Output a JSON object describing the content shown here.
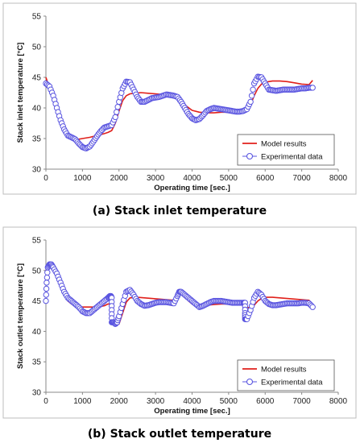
{
  "chart_data": [
    {
      "type": "line",
      "caption": "(a) Stack inlet temperature",
      "xlabel": "Operating time [sec.]",
      "ylabel": "Stack inlet temperature [°C]",
      "xlim": [
        0,
        8000
      ],
      "ylim": [
        30,
        55
      ],
      "xticks": [
        0,
        1000,
        2000,
        3000,
        4000,
        5000,
        6000,
        7000,
        8000
      ],
      "yticks": [
        30,
        35,
        40,
        45,
        50,
        55
      ],
      "grid": false,
      "legend": "bottom-right",
      "series": [
        {
          "name": "Model results",
          "style": "line",
          "color": "#e0201b",
          "x": [
            0,
            100,
            200,
            300,
            400,
            500,
            600,
            700,
            800,
            900,
            1000,
            1200,
            1400,
            1600,
            1700,
            1800,
            1900,
            2000,
            2100,
            2200,
            2300,
            2400,
            2600,
            2800,
            3000,
            3200,
            3400,
            3600,
            3800,
            4000,
            4200,
            4400,
            4600,
            4800,
            5000,
            5200,
            5400,
            5600,
            5700,
            5800,
            5900,
            6000,
            6200,
            6400,
            6600,
            6800,
            7000,
            7200,
            7300
          ],
          "y": [
            45.0,
            43.2,
            41.5,
            39.5,
            37.8,
            36.5,
            35.6,
            35.1,
            34.9,
            34.9,
            35.0,
            35.2,
            35.5,
            35.8,
            36.0,
            36.3,
            37.5,
            39.5,
            41.2,
            42.0,
            42.3,
            42.4,
            42.5,
            42.4,
            42.3,
            42.2,
            42.0,
            41.5,
            40.5,
            39.6,
            39.3,
            39.2,
            39.2,
            39.3,
            39.3,
            39.4,
            39.5,
            40.5,
            42.0,
            43.2,
            43.9,
            44.2,
            44.4,
            44.4,
            44.3,
            44.1,
            43.9,
            43.8,
            44.5
          ]
        },
        {
          "name": "Experimental data",
          "style": "markers",
          "color": "#5a55e0",
          "x": [
            0,
            100,
            200,
            300,
            400,
            500,
            600,
            700,
            800,
            900,
            1000,
            1100,
            1200,
            1300,
            1400,
            1500,
            1600,
            1700,
            1800,
            1900,
            2000,
            2100,
            2200,
            2300,
            2400,
            2500,
            2600,
            2700,
            2800,
            2900,
            3000,
            3100,
            3200,
            3300,
            3400,
            3500,
            3600,
            3700,
            3800,
            3900,
            4000,
            4100,
            4200,
            4300,
            4400,
            4500,
            4600,
            4700,
            4800,
            4900,
            5000,
            5100,
            5200,
            5300,
            5400,
            5500,
            5600,
            5700,
            5800,
            5900,
            6000,
            6100,
            6200,
            6300,
            6400,
            6500,
            6600,
            6700,
            6800,
            6900,
            7000,
            7100,
            7200,
            7300
          ],
          "y": [
            44.0,
            43.5,
            42.0,
            40.0,
            38.0,
            36.5,
            35.5,
            35.2,
            34.9,
            34.2,
            33.6,
            33.4,
            33.7,
            34.5,
            35.4,
            36.2,
            36.8,
            37.0,
            37.2,
            38.5,
            41.0,
            43.2,
            44.3,
            44.2,
            43.0,
            41.8,
            41.0,
            41.0,
            41.3,
            41.6,
            41.7,
            41.8,
            42.0,
            42.2,
            42.1,
            42.0,
            41.8,
            41.0,
            40.0,
            39.0,
            38.3,
            38.0,
            38.2,
            38.8,
            39.5,
            39.8,
            40.0,
            39.9,
            39.8,
            39.7,
            39.6,
            39.5,
            39.4,
            39.4,
            39.5,
            39.8,
            41.0,
            44.0,
            45.1,
            45.0,
            44.0,
            43.0,
            42.9,
            42.8,
            42.9,
            43.0,
            43.0,
            43.0,
            43.0,
            43.1,
            43.2,
            43.2,
            43.3,
            43.3
          ]
        }
      ]
    },
    {
      "type": "line",
      "caption": "(b) Stack outlet temperature",
      "xlabel": "Operating time [sec.]",
      "ylabel": "Stack outlet temperature [°C]",
      "xlim": [
        0,
        8000
      ],
      "ylim": [
        30,
        55
      ],
      "xticks": [
        0,
        1000,
        2000,
        3000,
        4000,
        5000,
        6000,
        7000,
        8000
      ],
      "yticks": [
        30,
        35,
        40,
        45,
        50,
        55
      ],
      "grid": false,
      "legend": "bottom-right",
      "series": [
        {
          "name": "Model results",
          "style": "line",
          "color": "#e0201b",
          "x": [
            0,
            100,
            200,
            300,
            400,
            500,
            600,
            700,
            800,
            900,
            1000,
            1200,
            1400,
            1600,
            1700,
            1800,
            1850,
            1900,
            2000,
            2100,
            2200,
            2300,
            2500,
            2700,
            2900,
            3100,
            3300,
            3500,
            3600,
            3700,
            3800,
            3900,
            4000,
            4200,
            4400,
            4600,
            4800,
            5000,
            5200,
            5400,
            5500,
            5600,
            5700,
            5800,
            5900,
            6000,
            6200,
            6400,
            6600,
            6800,
            7000,
            7200,
            7300
          ],
          "y": [
            50.0,
            50.6,
            50.2,
            49.0,
            47.5,
            46.0,
            45.0,
            44.5,
            44.2,
            44.1,
            44.0,
            44.0,
            44.0,
            44.2,
            44.5,
            44.5,
            42.0,
            41.0,
            41.2,
            43.0,
            44.8,
            45.5,
            45.6,
            45.5,
            45.4,
            45.3,
            45.2,
            45.1,
            45.8,
            46.2,
            45.8,
            45.0,
            44.5,
            44.3,
            44.3,
            44.4,
            44.5,
            44.5,
            44.5,
            44.5,
            44.0,
            43.8,
            44.3,
            45.0,
            45.4,
            45.6,
            45.6,
            45.5,
            45.4,
            45.3,
            45.2,
            45.1,
            44.0
          ]
        },
        {
          "name": "Experimental data",
          "style": "markers",
          "color": "#5a55e0",
          "x": [
            0,
            20,
            50,
            100,
            150,
            200,
            300,
            400,
            500,
            600,
            700,
            800,
            900,
            1000,
            1100,
            1200,
            1300,
            1400,
            1500,
            1600,
            1700,
            1750,
            1780,
            1800,
            1800,
            1800,
            1850,
            1900,
            1950,
            2000,
            2100,
            2200,
            2300,
            2400,
            2500,
            2600,
            2700,
            2800,
            2900,
            3000,
            3100,
            3200,
            3300,
            3400,
            3500,
            3600,
            3650,
            3700,
            3800,
            3900,
            4000,
            4100,
            4200,
            4300,
            4400,
            4500,
            4600,
            4700,
            4800,
            4900,
            5000,
            5100,
            5200,
            5300,
            5400,
            5450,
            5450,
            5450,
            5500,
            5600,
            5700,
            5800,
            5900,
            6000,
            6100,
            6200,
            6300,
            6400,
            6500,
            6600,
            6700,
            6800,
            6900,
            7000,
            7100,
            7200,
            7300
          ],
          "y": [
            45.0,
            48.0,
            50.5,
            51.0,
            51.0,
            50.5,
            49.5,
            48.0,
            46.5,
            45.5,
            45.0,
            44.5,
            44.0,
            43.3,
            43.0,
            43.0,
            43.5,
            44.0,
            44.5,
            45.0,
            45.5,
            45.8,
            45.8,
            45.5,
            43.5,
            41.5,
            41.5,
            41.2,
            41.5,
            42.5,
            44.5,
            46.5,
            46.8,
            46.0,
            45.0,
            44.5,
            44.2,
            44.3,
            44.5,
            44.7,
            44.8,
            44.8,
            44.8,
            44.7,
            44.6,
            45.8,
            46.5,
            46.5,
            46.0,
            45.5,
            45.0,
            44.5,
            44.0,
            44.2,
            44.5,
            44.8,
            45.0,
            45.0,
            45.0,
            44.9,
            44.8,
            44.7,
            44.7,
            44.7,
            44.7,
            44.7,
            43.0,
            42.0,
            42.0,
            43.5,
            45.5,
            46.5,
            46.0,
            45.0,
            44.5,
            44.3,
            44.3,
            44.4,
            44.5,
            44.6,
            44.6,
            44.6,
            44.6,
            44.7,
            44.7,
            44.6,
            44.0
          ]
        }
      ]
    }
  ]
}
